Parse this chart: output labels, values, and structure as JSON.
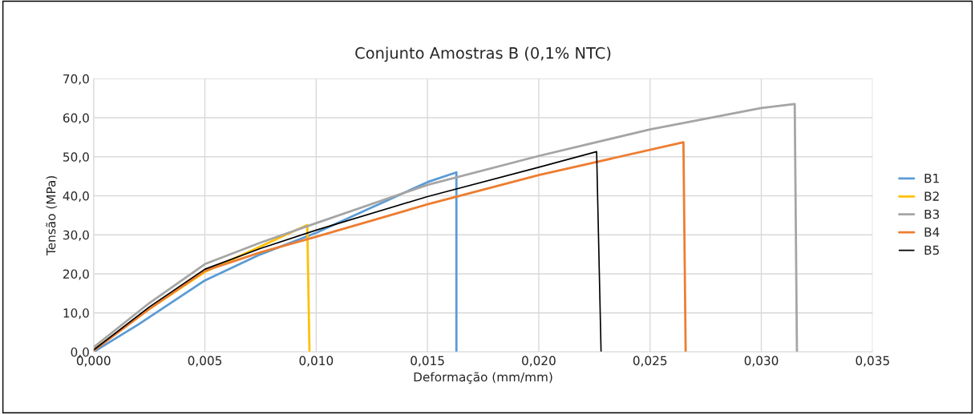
{
  "chart_data": {
    "type": "line",
    "title": "Conjunto Amostras B (0,1% NTC)",
    "xlabel": "Deformação (mm/mm)",
    "ylabel": "Tensão (MPa)",
    "series": [
      {
        "name": "B1",
        "color": "#5b9bd5",
        "x": [
          0,
          0.002,
          0.005,
          0.0075,
          0.01,
          0.0125,
          0.015,
          0.0163,
          0.0163
        ],
        "values": [
          0,
          7,
          18.3,
          25,
          30.5,
          37,
          43.5,
          46.0,
          0
        ]
      },
      {
        "name": "B2",
        "color": "#ffc000",
        "x": [
          0,
          0.0025,
          0.005,
          0.0075,
          0.0096,
          0.0097
        ],
        "values": [
          0.5,
          11,
          20.5,
          27,
          32.5,
          0
        ]
      },
      {
        "name": "B3",
        "color": "#a5a5a5",
        "x": [
          0,
          0.0025,
          0.005,
          0.0075,
          0.01,
          0.015,
          0.02,
          0.025,
          0.03,
          0.0315,
          0.0316
        ],
        "values": [
          1.2,
          12.5,
          22.5,
          28,
          33,
          42.8,
          50.2,
          57,
          62.5,
          63.5,
          0
        ]
      },
      {
        "name": "B4",
        "color": "#ed7d31",
        "x": [
          0,
          0.0025,
          0.005,
          0.0075,
          0.01,
          0.015,
          0.02,
          0.0265,
          0.0266
        ],
        "values": [
          0.3,
          11,
          20.8,
          25.5,
          29.5,
          37.8,
          45.3,
          53.7,
          0
        ]
      },
      {
        "name": "B5",
        "color": "#000000",
        "x": [
          0,
          0.0025,
          0.005,
          0.0075,
          0.01,
          0.015,
          0.02,
          0.0226,
          0.0228
        ],
        "values": [
          0.5,
          11.5,
          21.2,
          26.5,
          31.2,
          39.8,
          47.3,
          51.3,
          0
        ]
      }
    ],
    "xlim": [
      0,
      0.035
    ],
    "ylim": [
      0,
      70
    ],
    "xticks": [
      {
        "value": 0,
        "label": "0,000"
      },
      {
        "value": 0.005,
        "label": "0,005"
      },
      {
        "value": 0.01,
        "label": "0,010"
      },
      {
        "value": 0.015,
        "label": "0,015"
      },
      {
        "value": 0.02,
        "label": "0,020"
      },
      {
        "value": 0.025,
        "label": "0,025"
      },
      {
        "value": 0.03,
        "label": "0,030"
      },
      {
        "value": 0.035,
        "label": "0,035"
      }
    ],
    "yticks": [
      {
        "value": 0,
        "label": "0,0"
      },
      {
        "value": 10,
        "label": "10,0"
      },
      {
        "value": 20,
        "label": "20,0"
      },
      {
        "value": 30,
        "label": "30,0"
      },
      {
        "value": 40,
        "label": "40,0"
      },
      {
        "value": 50,
        "label": "50,0"
      },
      {
        "value": 60,
        "label": "60,0"
      },
      {
        "value": 70,
        "label": "70,0"
      }
    ],
    "grid": true,
    "legend": "right",
    "marker": "none",
    "line_style": "solid"
  }
}
